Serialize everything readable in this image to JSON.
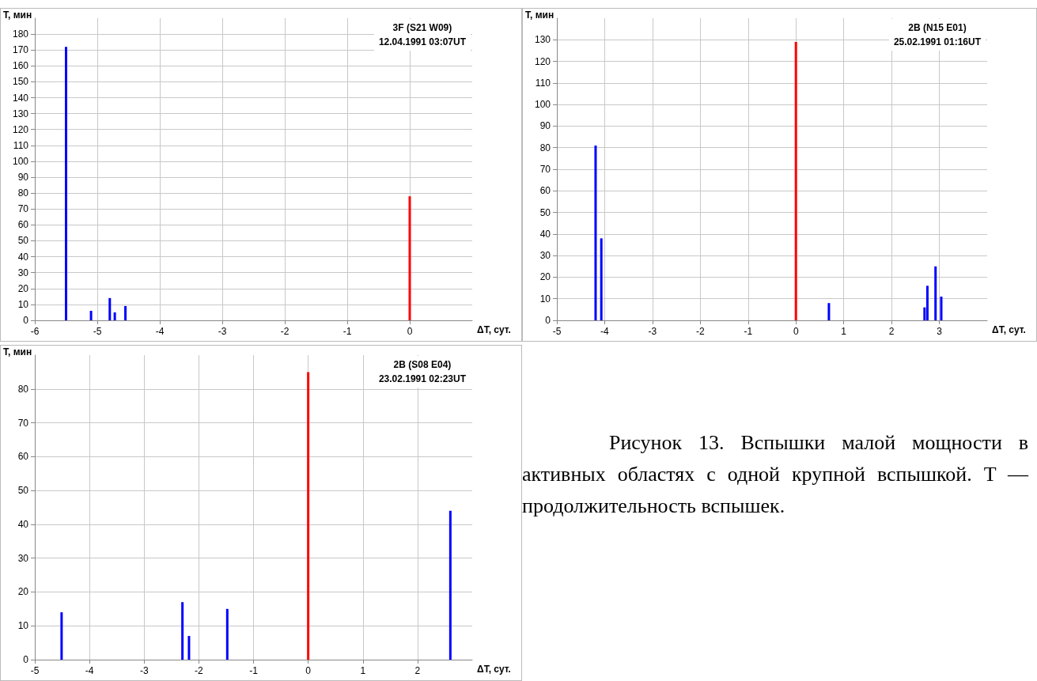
{
  "chart_data": [
    {
      "type": "bar",
      "xlabel": "ΔT, сут.",
      "ylabel": "T, мин",
      "annotations": [
        "3F (S21 W09)",
        "12.04.1991 03:07UT"
      ],
      "grid": true,
      "xlim": [
        -6,
        1
      ],
      "xticks": [
        -6,
        -5,
        -4,
        -3,
        -2,
        -1,
        0
      ],
      "ylim": [
        0,
        190
      ],
      "yticks": [
        0,
        10,
        20,
        30,
        40,
        50,
        60,
        70,
        80,
        90,
        100,
        110,
        120,
        130,
        140,
        150,
        160,
        170,
        180
      ],
      "series": [
        {
          "color": "#0000ff",
          "x": [
            -5.5,
            -5.1,
            -4.8,
            -4.72,
            -4.55
          ],
          "values": [
            172,
            6,
            14,
            5,
            9
          ]
        },
        {
          "color": "#ff0000",
          "x": [
            0
          ],
          "values": [
            78
          ]
        }
      ]
    },
    {
      "type": "bar",
      "xlabel": "ΔT, сут.",
      "ylabel": "T, мин",
      "annotations": [
        "2B (N15 E01)",
        "25.02.1991 01:16UT"
      ],
      "grid": true,
      "xlim": [
        -5,
        4
      ],
      "xticks": [
        -5,
        -4,
        -3,
        -2,
        -1,
        0,
        1,
        2,
        3
      ],
      "ylim": [
        0,
        140
      ],
      "yticks": [
        0,
        10,
        20,
        30,
        40,
        50,
        60,
        70,
        80,
        90,
        100,
        110,
        120,
        130
      ],
      "series": [
        {
          "color": "#0000ff",
          "x": [
            -4.19,
            -4.07,
            0.69,
            2.69,
            2.75,
            2.92,
            3.04
          ],
          "values": [
            81,
            38,
            8,
            6,
            16,
            25,
            11
          ]
        },
        {
          "color": "#ff0000",
          "x": [
            0
          ],
          "values": [
            129
          ]
        }
      ]
    },
    {
      "type": "bar",
      "xlabel": "ΔT, сут.",
      "ylabel": "T, мин",
      "annotations": [
        "2B (S08 E04)",
        "23.02.1991 02:23UT"
      ],
      "grid": true,
      "xlim": [
        -5,
        3
      ],
      "xticks": [
        -5,
        -4,
        -3,
        -2,
        -1,
        0,
        1,
        2
      ],
      "ylim": [
        0,
        90
      ],
      "yticks": [
        0,
        10,
        20,
        30,
        40,
        50,
        60,
        70,
        80
      ],
      "series": [
        {
          "color": "#0000ff",
          "x": [
            -4.51,
            -2.3,
            -2.18,
            -1.48,
            2.6
          ],
          "values": [
            14,
            17,
            7,
            15,
            44
          ]
        },
        {
          "color": "#ff0000",
          "x": [
            0
          ],
          "values": [
            85
          ]
        }
      ]
    },
    {
      "type": "other",
      "annotations": [
        "Рисунок 13. Вспышки малой мощности в активных областях с одной крупной вспышкой. T — продолжительность вспышек."
      ]
    }
  ]
}
